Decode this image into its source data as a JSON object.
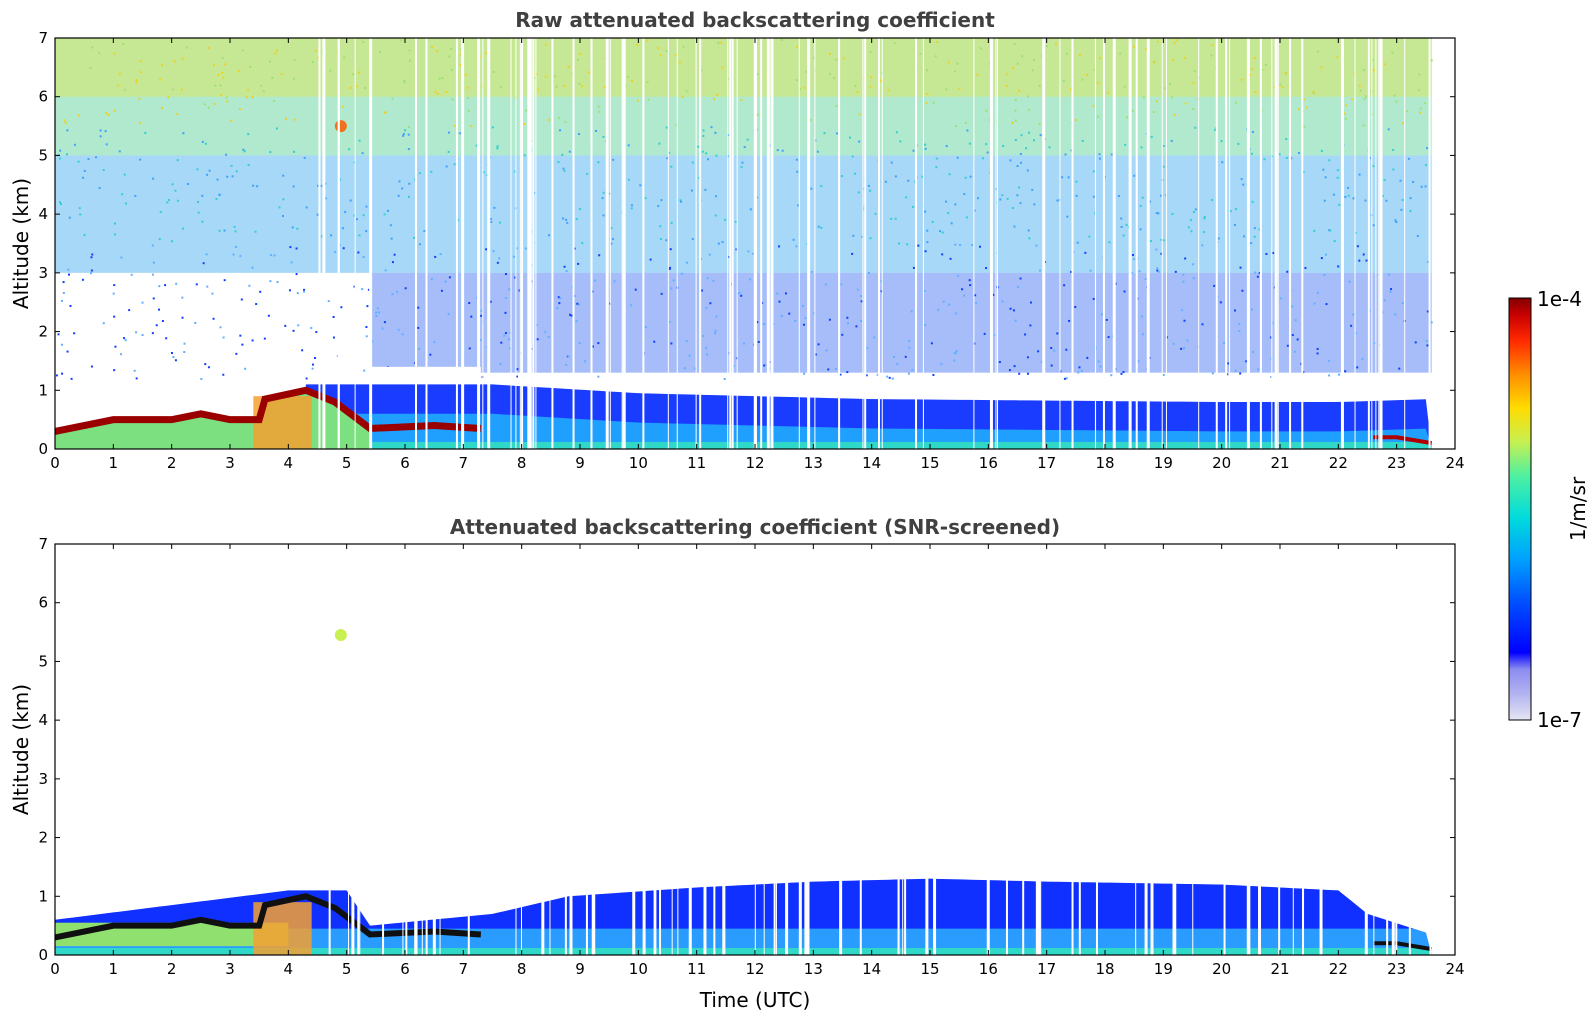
{
  "chart_data": [
    {
      "type": "heatmap",
      "title": "Raw attenuated backscattering coefficient",
      "xlabel": "",
      "ylabel": "Altitude (km)",
      "xlim": [
        0,
        24
      ],
      "ylim": [
        0,
        7
      ],
      "xticks": [
        0,
        1,
        2,
        3,
        4,
        5,
        6,
        7,
        8,
        9,
        10,
        11,
        12,
        13,
        14,
        15,
        16,
        17,
        18,
        19,
        20,
        21,
        22,
        23,
        24
      ],
      "yticks": [
        0,
        1,
        2,
        3,
        4,
        5,
        6,
        7
      ],
      "data_end_time": 23.6,
      "features": {
        "cloud_layer_km": [
          [
            0.0,
            0.3
          ],
          [
            1.0,
            0.5
          ],
          [
            2.0,
            0.5
          ],
          [
            2.5,
            0.6
          ],
          [
            3.0,
            0.5
          ],
          [
            3.5,
            0.5
          ],
          [
            3.6,
            0.85
          ],
          [
            4.3,
            1.0
          ],
          [
            4.8,
            0.8
          ],
          [
            5.4,
            0.35
          ],
          [
            6.5,
            0.4
          ],
          [
            7.3,
            0.35
          ]
        ],
        "late_cloud_km": [
          [
            22.6,
            0.2
          ],
          [
            23.0,
            0.2
          ],
          [
            23.6,
            0.1
          ]
        ],
        "aerosol_layer_top_km": [
          [
            7.5,
            0.6
          ],
          [
            10,
            0.45
          ],
          [
            14,
            0.35
          ],
          [
            20,
            0.3
          ],
          [
            22,
            0.3
          ],
          [
            23.6,
            0.35
          ]
        ],
        "elevated_feature": {
          "time": 4.9,
          "altitude_km": 5.5
        }
      }
    },
    {
      "type": "heatmap",
      "title": "Attenuated backscattering coefficient (SNR-screened)",
      "xlabel": "Time (UTC)",
      "ylabel": "Altitude (km)",
      "xlim": [
        0,
        24
      ],
      "ylim": [
        0,
        7
      ],
      "xticks": [
        0,
        1,
        2,
        3,
        4,
        5,
        6,
        7,
        8,
        9,
        10,
        11,
        12,
        13,
        14,
        15,
        16,
        17,
        18,
        19,
        20,
        21,
        22,
        23,
        24
      ],
      "yticks": [
        0,
        1,
        2,
        3,
        4,
        5,
        6,
        7
      ],
      "data_end_time": 23.6,
      "features": {
        "boundary_layer_top_km": [
          [
            0,
            0.6
          ],
          [
            4.0,
            1.1
          ],
          [
            5.0,
            1.1
          ],
          [
            5.4,
            0.5
          ],
          [
            7.5,
            0.7
          ],
          [
            8.8,
            1.0
          ],
          [
            11,
            1.15
          ],
          [
            13,
            1.25
          ],
          [
            15,
            1.3
          ],
          [
            17,
            1.25
          ],
          [
            20,
            1.2
          ],
          [
            22,
            1.1
          ],
          [
            22.5,
            0.7
          ],
          [
            23.6,
            0.35
          ]
        ],
        "elevated_feature": {
          "time": 4.9,
          "altitude_km": 5.45
        }
      }
    }
  ],
  "colorbar": {
    "min_label": "1e-7",
    "max_label": "1e-4",
    "label": "1/m/sr",
    "scale": "log",
    "colors": [
      "#e6e6f5",
      "#b4b4f0",
      "#8c8cf0",
      "#0000ff",
      "#0050ff",
      "#00a0ff",
      "#00dcdc",
      "#50f0a0",
      "#c8f050",
      "#ffdc00",
      "#ff8c00",
      "#ff2800",
      "#c80000",
      "#820000"
    ]
  }
}
